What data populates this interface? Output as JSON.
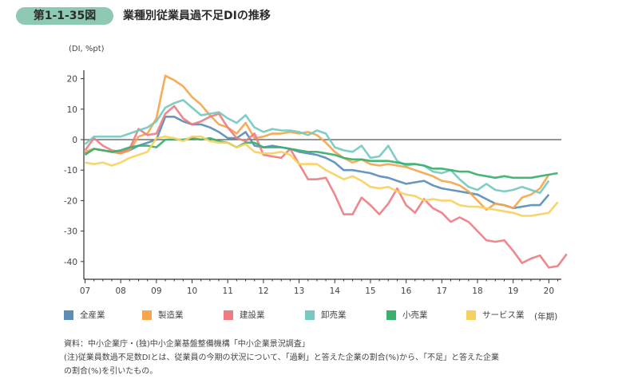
{
  "figure": {
    "number": "第1-1-35図",
    "title": "業種別従業員過不足DIの推移",
    "y_unit": "(DI, %pt)",
    "x_unit": "(年期)",
    "source": "資料：中小企業庁・(独)中小企業基盤整備機構「中小企業景況調査」",
    "note_line1": "(注)従業員数過不足数DIとは、従業員の今期の状況について、「過剰」と答えた企業の割合(%)から、「不足」と答えた企業",
    "note_line2": "の割合(%)を引いたもの。"
  },
  "chart_data": {
    "type": "line",
    "title": "業種別従業員過不足DIの推移",
    "xlabel": "(年期)",
    "ylabel": "(DI, %pt)",
    "x_ticks": [
      "07",
      "08",
      "09",
      "10",
      "11",
      "12",
      "13",
      "14",
      "15",
      "16",
      "17",
      "18",
      "19",
      "20"
    ],
    "x_range": [
      "2007Q1",
      "2020Q1"
    ],
    "x_frequency": "quarterly",
    "y_ticks": [
      20,
      10,
      0,
      -10,
      -20,
      -30,
      -40
    ],
    "ylim": [
      -46,
      25
    ],
    "grid": false,
    "zero_line": true,
    "legend_position": "bottom",
    "series": [
      {
        "name": "全産業",
        "color": "#5b8db8",
        "values": [
          -4.5,
          -3,
          -3.5,
          -4,
          -4.5,
          -3.5,
          -2,
          -1,
          0,
          7.5,
          7.5,
          6,
          5,
          5,
          4,
          2.5,
          0.5,
          0.5,
          2.5,
          -2,
          -2.5,
          -2,
          -2.5,
          -3,
          -4,
          -4.5,
          -5,
          -6,
          -7.5,
          -10,
          -10,
          -10.5,
          -11,
          -12,
          -12.5,
          -13.5,
          -14.5,
          -14,
          -13.5,
          -15,
          -16,
          -16.5,
          -17,
          -17.5,
          -18,
          -19.5,
          -21,
          -21.5,
          -22.5,
          -22,
          -21.5,
          -21.5,
          -18
        ]
      },
      {
        "name": "製造業",
        "color": "#f5a54a",
        "values": [
          -4,
          -3,
          -3.5,
          -4,
          -4.5,
          -3.5,
          1,
          2,
          7,
          21,
          19.5,
          17.5,
          14,
          11.5,
          8,
          5,
          4,
          2,
          5.5,
          0.5,
          1,
          2,
          2,
          2.5,
          2,
          2.5,
          1.5,
          -1,
          -4,
          -6,
          -7.5,
          -6.5,
          -8,
          -8.5,
          -8,
          -8.5,
          -9,
          -10,
          -11,
          -12,
          -13.5,
          -14,
          -15,
          -17,
          -20,
          -23,
          -21,
          -21.5,
          -22.5,
          -19,
          -18,
          -16,
          -11.5
        ]
      },
      {
        "name": "建設業",
        "color": "#ee7d82",
        "values": [
          -3.5,
          0.5,
          -2,
          -3.5,
          -4,
          -3,
          3.5,
          1.5,
          2,
          8.5,
          11,
          7,
          5,
          6,
          7.5,
          8.5,
          4,
          0.5,
          -0.5,
          2,
          -5,
          -5.5,
          -6,
          -3,
          -8,
          -13,
          -13,
          -12.5,
          -18,
          -24.5,
          -24.5,
          -19,
          -21.5,
          -24.5,
          -21,
          -16,
          -21.5,
          -24,
          -19.5,
          -22.5,
          -24,
          -27,
          -25.5,
          -27,
          -30,
          -33,
          -33.5,
          -33,
          -36.5,
          -40.5,
          -39,
          -38,
          -42,
          -41.5,
          -37.5
        ]
      },
      {
        "name": "卸売業",
        "color": "#74c9c1",
        "values": [
          -1.5,
          1,
          1,
          1,
          1,
          2,
          3,
          4,
          6,
          10.5,
          12,
          13,
          10.5,
          8,
          8.5,
          9,
          7,
          5.5,
          8,
          4,
          2.5,
          3.5,
          3,
          3,
          2.5,
          1.5,
          3,
          2,
          -2.5,
          -3.5,
          -4,
          -2,
          -6,
          -5.5,
          -2,
          -7,
          -8.5,
          -8,
          -8.5,
          -10.5,
          -11,
          -10,
          -13,
          -15.5,
          -16.5,
          -14.5,
          -16.5,
          -17,
          -16.5,
          -15.5,
          -16.5,
          -17.5,
          -13.5
        ]
      },
      {
        "name": "小売業",
        "color": "#3ab06e",
        "values": [
          -5,
          -3,
          -3.5,
          -4,
          -3.5,
          -2.5,
          -2,
          -2,
          -2.5,
          0,
          0,
          0,
          0.5,
          0,
          0.5,
          -0.5,
          -1,
          -2.5,
          -1,
          -1,
          -2.5,
          -2.5,
          -2.5,
          -3,
          -3.5,
          -4,
          -4,
          -4.5,
          -5,
          -6,
          -6.5,
          -6.5,
          -7,
          -7,
          -7,
          -7.5,
          -8,
          -8,
          -8.5,
          -9.5,
          -9.5,
          -10,
          -10.5,
          -10.5,
          -11.5,
          -12,
          -12.5,
          -12,
          -12.5,
          -12.5,
          -12.5,
          -12,
          -11.5,
          -11
        ]
      },
      {
        "name": "サービス業",
        "color": "#f7d15e",
        "values": [
          -7.5,
          -8,
          -7.5,
          -8.5,
          -7.5,
          -6,
          -5,
          -4,
          0.5,
          1,
          0.5,
          -0.5,
          1,
          1,
          -0.5,
          -1,
          -1,
          -2.5,
          -1.5,
          -4,
          -4.5,
          -4.5,
          -4,
          -5,
          -8,
          -8,
          -8,
          -10,
          -11.5,
          -13,
          -12,
          -13.5,
          -15.5,
          -16,
          -15.5,
          -17,
          -18,
          -18.5,
          -20,
          -19.5,
          -20,
          -20,
          -21.5,
          -22,
          -22,
          -22.5,
          -23,
          -23.5,
          -24,
          -25,
          -25,
          -24.5,
          -24,
          -20.5
        ]
      }
    ]
  }
}
